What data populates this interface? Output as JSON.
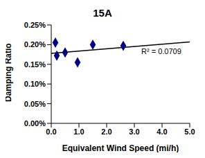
{
  "chart_data": {
    "type": "scatter",
    "title": "15A",
    "x_label": "Equivalent Wind Speed (mi/h)",
    "y_label": "Damping Ratio",
    "x": [
      0.15,
      0.2,
      0.5,
      0.95,
      1.5,
      2.6
    ],
    "values": [
      0.205,
      0.172,
      0.18,
      0.155,
      0.2,
      0.197
    ],
    "color": "#000080",
    "marker": "diamond",
    "trendline": {
      "x": [
        0,
        5
      ],
      "values": [
        0.178,
        0.207
      ],
      "color": "#000000",
      "line_style": "solid"
    },
    "annotations": [
      "R² = 0.0709"
    ],
    "xlim": [
      0,
      5
    ],
    "xticks": [
      {
        "value": 0,
        "label": "0.0"
      },
      {
        "value": 1,
        "label": "1.0"
      },
      {
        "value": 2,
        "label": "2.0"
      },
      {
        "value": 3,
        "label": "3.0"
      },
      {
        "value": 4,
        "label": "4.0"
      },
      {
        "value": 5,
        "label": "5.0"
      }
    ],
    "ylim": [
      0,
      0.25
    ],
    "yticks": [
      {
        "value": 0,
        "label": "0.00%"
      },
      {
        "value": 0.05,
        "label": "0.05%"
      },
      {
        "value": 0.1,
        "label": "0.10%"
      },
      {
        "value": 0.15,
        "label": "0.15%"
      },
      {
        "value": 0.2,
        "label": "0.20%"
      },
      {
        "value": 0.25,
        "label": "0.25%"
      }
    ],
    "grid": false
  }
}
